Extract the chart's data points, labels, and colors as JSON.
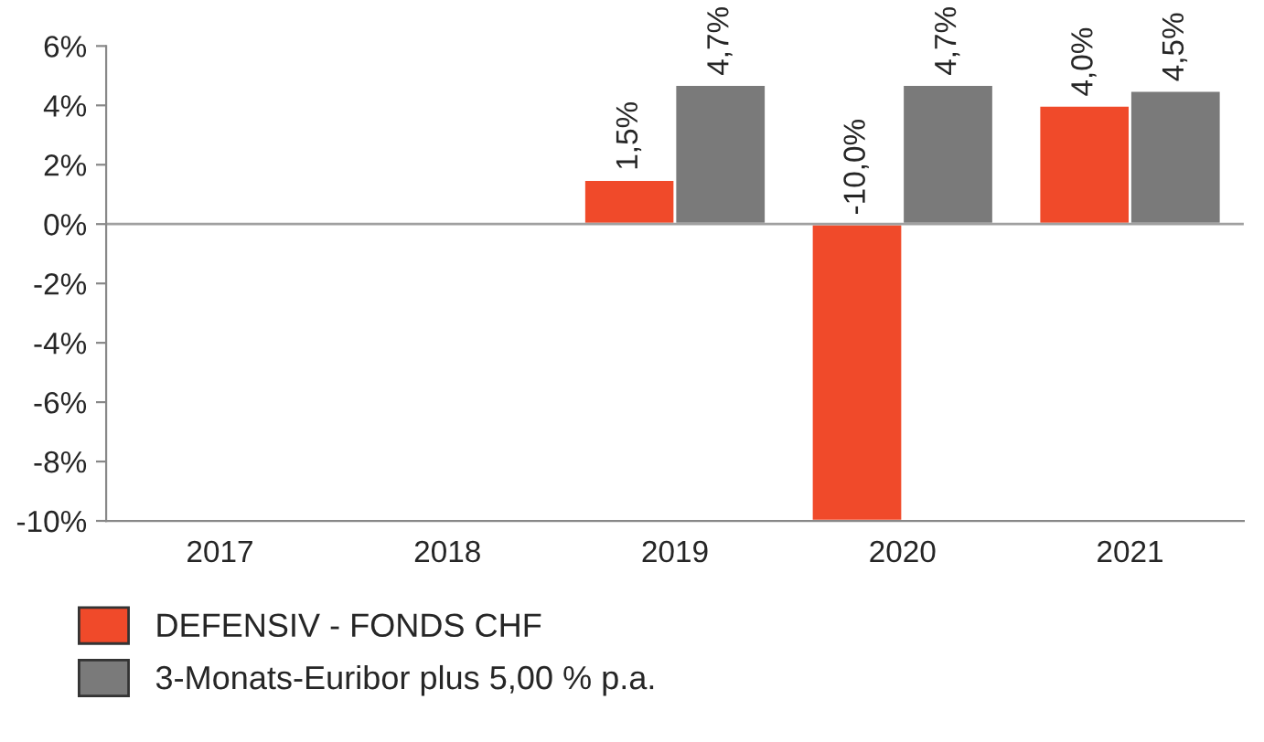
{
  "chart_data": {
    "type": "bar",
    "categories": [
      "2017",
      "2018",
      "2019",
      "2020",
      "2021"
    ],
    "series": [
      {
        "name": "DEFENSIV - FONDS CHF",
        "color": "#f04a2a",
        "values": [
          null,
          null,
          1.5,
          -10.0,
          4.0
        ],
        "value_labels": [
          null,
          null,
          "1,5%",
          "-10,0%",
          "4,0%"
        ]
      },
      {
        "name": "3-Monats-Euribor plus 5,00 % p.a.",
        "color": "#7a7a7a",
        "values": [
          null,
          null,
          4.7,
          4.7,
          4.5
        ],
        "value_labels": [
          null,
          null,
          "4,7%",
          "4,7%",
          "4,5%"
        ]
      }
    ],
    "ylim": [
      -10,
      6
    ],
    "yticks": [
      {
        "value": -10,
        "label": "-10%"
      },
      {
        "value": -8,
        "label": "-8%"
      },
      {
        "value": -6,
        "label": "-6%"
      },
      {
        "value": -4,
        "label": "-4%"
      },
      {
        "value": -2,
        "label": "-2%"
      },
      {
        "value": 0,
        "label": "0%"
      },
      {
        "value": 2,
        "label": "2%"
      },
      {
        "value": 4,
        "label": "4%"
      },
      {
        "value": 6,
        "label": "6%"
      }
    ],
    "ref_lines": [
      {
        "axis": "y",
        "value": 0,
        "color": "#a0a0a0"
      }
    ],
    "grid": false,
    "legend": "bottom"
  }
}
